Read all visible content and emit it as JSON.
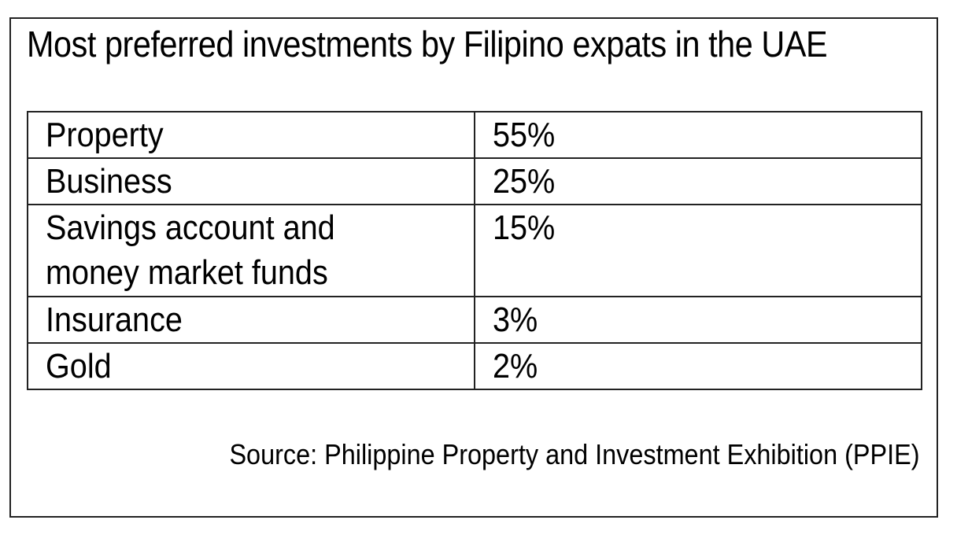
{
  "title": "Most preferred investments by Filipino expats in the UAE",
  "table": {
    "rows": [
      {
        "label_lines": [
          "Property"
        ],
        "value": "55%"
      },
      {
        "label_lines": [
          "Business"
        ],
        "value": "25%"
      },
      {
        "label_lines": [
          "Savings account and",
          "money market funds"
        ],
        "value": "15%"
      },
      {
        "label_lines": [
          "Insurance"
        ],
        "value": "3%"
      },
      {
        "label_lines": [
          "Gold"
        ],
        "value": "2%"
      }
    ]
  },
  "source": "Source: Philippine Property and Investment Exhibition (PPIE)"
}
